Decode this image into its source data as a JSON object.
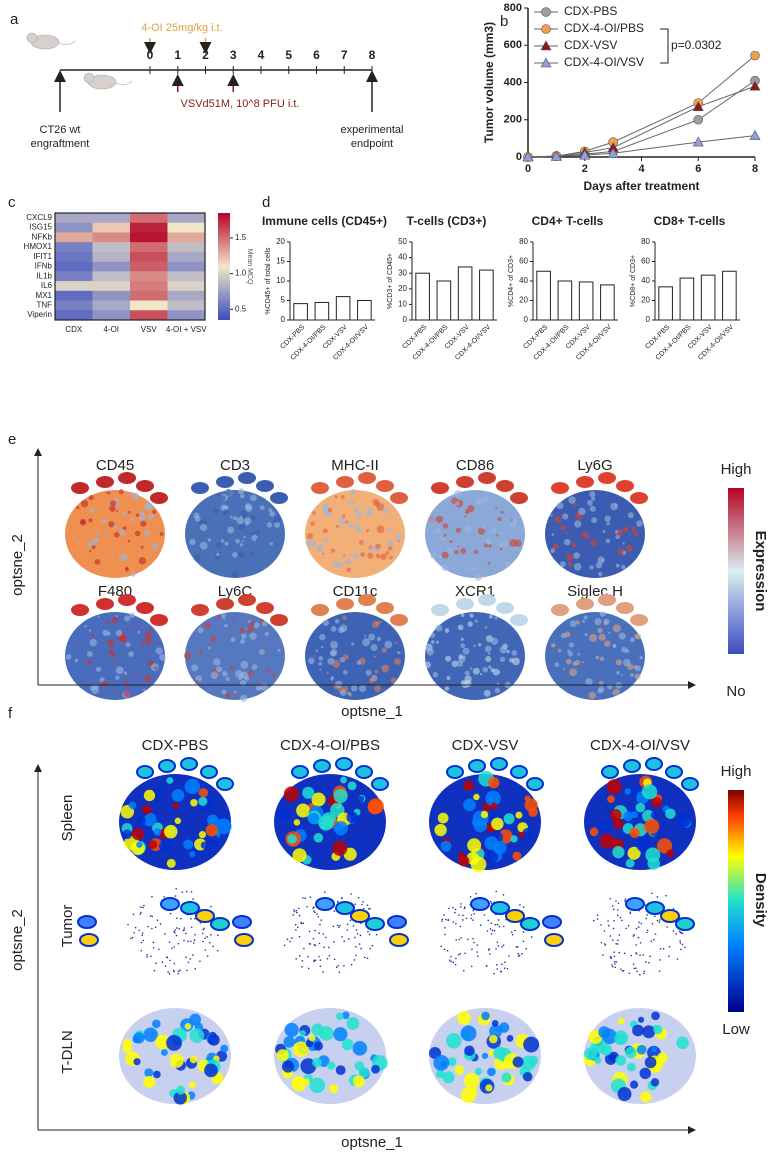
{
  "panel_labels": [
    "a",
    "b",
    "c",
    "d",
    "e",
    "f"
  ],
  "timeline": {
    "treatment": "4-OI 25mg/kg i.t.",
    "treatment_days": [
      0,
      2
    ],
    "days": [
      0,
      1,
      2,
      3,
      4,
      5,
      6,
      7,
      8
    ],
    "virus": "VSVd51M, 10^8 PFU i.t.",
    "virus_days": [
      1,
      3
    ],
    "start": [
      "CT26 wt",
      "engraftment"
    ],
    "end": [
      "experimental",
      "endpoint"
    ]
  },
  "chart_data": [
    {
      "type": "line",
      "x": [
        0,
        1,
        2,
        3,
        6,
        8
      ],
      "xlim": [
        0,
        8
      ],
      "xticks": [
        0,
        2,
        4,
        6,
        8
      ],
      "ylim": [
        0,
        800
      ],
      "yticks": [
        0,
        200,
        400,
        600,
        800
      ],
      "xlabel": "Days after treatment",
      "ylabel": "Tumor volume (mm3)",
      "annotation": "p=0.0302",
      "legend": "upper left",
      "series": [
        {
          "name": "CDX-PBS",
          "color": "#9e9e9e",
          "marker": "circle",
          "values": [
            0,
            5,
            15,
            30,
            200,
            410
          ]
        },
        {
          "name": "CDX-4-OI/PBS",
          "color": "#f0a050",
          "marker": "circle",
          "values": [
            0,
            5,
            30,
            80,
            290,
            545
          ]
        },
        {
          "name": "CDX-VSV",
          "color": "#8b1a1a",
          "marker": "triangle",
          "values": [
            0,
            5,
            25,
            50,
            270,
            380
          ]
        },
        {
          "name": "CDX-4-OI/VSV",
          "color": "#8f9ee0",
          "marker": "triangle",
          "values": [
            0,
            3,
            10,
            20,
            80,
            115
          ]
        }
      ]
    },
    {
      "type": "heatmap",
      "rows": [
        "CXCL9",
        "ISG15",
        "NFKb",
        "HMOX1",
        "IFIT1",
        "IFNb",
        "IL1b",
        "IL6",
        "MX1",
        "TNF",
        "Viperin"
      ],
      "columns": [
        "CDX",
        "4-OI",
        "VSV",
        "4-OI + VSV"
      ],
      "values": [
        [
          0.8,
          0.8,
          1.5,
          0.8
        ],
        [
          0.7,
          1.2,
          1.75,
          1.1
        ],
        [
          1.3,
          1.4,
          1.8,
          1.3
        ],
        [
          0.6,
          0.9,
          1.5,
          0.9
        ],
        [
          0.55,
          0.85,
          1.6,
          0.8
        ],
        [
          0.5,
          0.7,
          1.55,
          0.7
        ],
        [
          0.6,
          0.9,
          1.4,
          0.9
        ],
        [
          1.0,
          1.0,
          1.45,
          1.0
        ],
        [
          0.5,
          0.7,
          1.5,
          0.8
        ],
        [
          0.6,
          0.8,
          1.1,
          0.9
        ],
        [
          0.5,
          0.7,
          1.6,
          0.7
        ]
      ],
      "colorbar_label": "Mean MCQ",
      "clim": [
        0.35,
        1.85
      ],
      "cticks": [
        0.5,
        {
          "value": 1,
          "label": "1.0"
        },
        1.5
      ]
    },
    {
      "type": "bar",
      "title": "Immune cells (CD45+)",
      "ylabel": "%CD45+ of total cells",
      "categories": [
        "CDX-PBS",
        "CDX-4-OI/PBS",
        "CDX-VSV",
        "CDX-4-OI/VSV"
      ],
      "values": [
        4.2,
        4.5,
        6,
        5
      ],
      "ylim": [
        0,
        20
      ],
      "yticks": [
        0,
        5,
        10,
        15,
        20
      ],
      "color": "#ffffff"
    },
    {
      "type": "bar",
      "title": "T-cells (CD3+)",
      "ylabel": "%CD3+ of CD45+",
      "categories": [
        "CDX-PBS",
        "CDX-4-OI/PBS",
        "CDX-VSV",
        "CDX-4-OI/VSV"
      ],
      "values": [
        30,
        25,
        34,
        32
      ],
      "ylim": [
        0,
        50
      ],
      "yticks": [
        0,
        10,
        20,
        30,
        40,
        50
      ],
      "color": "#ffffff"
    },
    {
      "type": "bar",
      "title": "CD4+ T-cells",
      "ylabel": "%CD4+ of CD3+",
      "categories": [
        "CDX-PBS",
        "CDX-4-OI/PBS",
        "CDX-VSV",
        "CDX-4-OI/VSV"
      ],
      "values": [
        50,
        40,
        39,
        36
      ],
      "ylim": [
        0,
        80
      ],
      "yticks": [
        0,
        20,
        40,
        60,
        80
      ],
      "color": "#ffffff"
    },
    {
      "type": "bar",
      "title": "CD8+ T-cells",
      "ylabel": "%CD8+ of CD3+",
      "categories": [
        "CDX-PBS",
        "CDX-4-OI/PBS",
        "CDX-VSV",
        "CDX-4-OI/VSV"
      ],
      "values": [
        34,
        43,
        46,
        50
      ],
      "ylim": [
        0,
        80
      ],
      "yticks": [
        0,
        20,
        40,
        60,
        80
      ],
      "color": "#ffffff"
    }
  ],
  "tsne_markers": {
    "markers": [
      "CD45",
      "CD3",
      "MHC-II",
      "CD86",
      "Ly6G",
      "F480",
      "Ly6C",
      "CD11c",
      "XCR1",
      "Siglec H"
    ],
    "xlabel": "optsne_1",
    "ylabel": "optsne_2",
    "scale_high": "High",
    "scale_low": "No",
    "scale_label": "Expression"
  },
  "tsne_density": {
    "groups": [
      "CDX-PBS",
      "CDX-4-OI/PBS",
      "CDX-VSV",
      "CDX-4-OI/VSV"
    ],
    "tissues": [
      "Spleen",
      "Tumor",
      "T-DLN"
    ],
    "xlabel": "optsne_1",
    "ylabel": "optsne_2",
    "scale_high": "High",
    "scale_low": "Low",
    "scale_label": "Density"
  }
}
